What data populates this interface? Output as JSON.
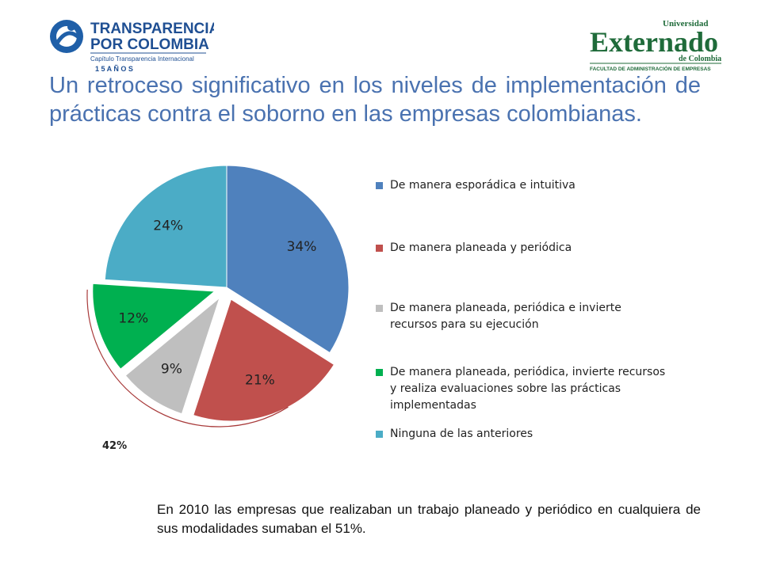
{
  "logos": {
    "left": {
      "line1": "TRANSPARENCIA",
      "line2": "POR COLOMBIA",
      "line3": "Capítulo Transparencia Internacional",
      "line4": "1 5  A Ñ O S"
    },
    "right": {
      "line1": "Universidad",
      "line2": "Externado",
      "line3": "de Colombia",
      "line4": "FACULTAD DE ADMINISTRACIÓN DE EMPRESAS"
    }
  },
  "title": "Un retroceso significativo en los niveles de implementación de prácticas contra el soborno en las empresas colombianas.",
  "chart_data": {
    "type": "pie",
    "title": "",
    "slices": [
      {
        "label": "De manera esporádica e intuitiva",
        "value": 34,
        "display": "34%",
        "color": "#4f81bd",
        "exploded": false
      },
      {
        "label": "De manera planeada y periódica",
        "value": 21,
        "display": "21%",
        "color": "#c0504d",
        "exploded": true
      },
      {
        "label": "De manera planeada, periódica e invierte recursos para su ejecución",
        "value": 9,
        "display": "9%",
        "color": "#bfbfbf",
        "exploded": true
      },
      {
        "label": "De manera planeada, periódica, invierte recursos y realiza evaluaciones sobre las prácticas implementadas",
        "value": 12,
        "display": "12%",
        "color": "#00b050",
        "exploded": true
      },
      {
        "label": "Ninguna de las anteriores",
        "value": 24,
        "display": "24%",
        "color": "#4bacc6",
        "exploded": false
      }
    ],
    "legend_position": "right",
    "annotation": "42%"
  },
  "footnote": "En 2010 las empresas que realizaban un trabajo planeado y periódico en cualquiera de sus modalidades sumaban el 51%."
}
